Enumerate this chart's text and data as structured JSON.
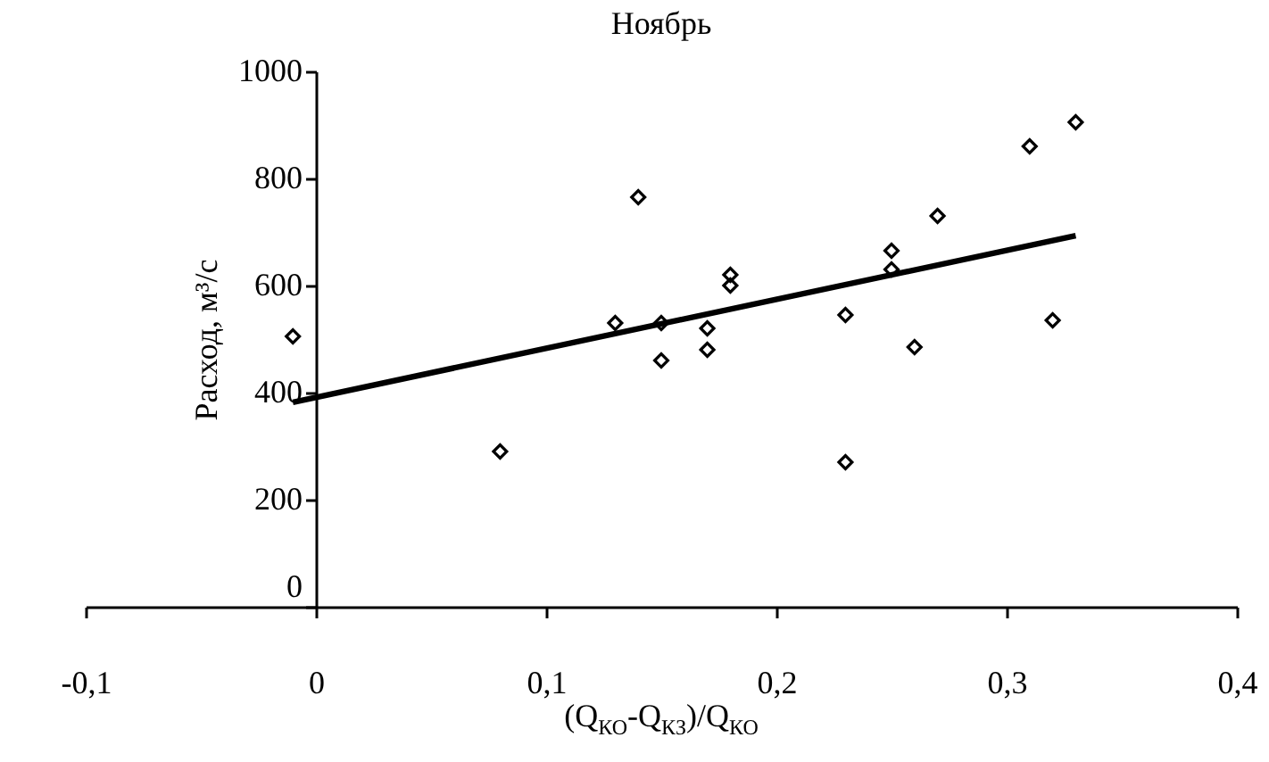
{
  "chart_data": {
    "type": "scatter",
    "title": "Ноябрь",
    "xlabel": "(Q$_{КО}$-Q$_{КЗ}$)/Q$_{КО}$",
    "ylabel": "Расход, м³/с",
    "xlim": [
      -0.1,
      0.4
    ],
    "xticks": [
      {
        "value": -0.1,
        "label": "-0,1"
      },
      0,
      {
        "value": 0.1,
        "label": "0,1"
      },
      {
        "value": 0.2,
        "label": "0,2"
      },
      {
        "value": 0.3,
        "label": "0,3"
      },
      {
        "value": 0.4,
        "label": "0,4"
      }
    ],
    "ylim": [
      0,
      1000
    ],
    "yticks": [
      0,
      200,
      400,
      600,
      800,
      1000
    ],
    "series": [
      {
        "type": "scatter",
        "marker": "diamond",
        "color": "#000000",
        "x": [
          -0.01,
          0.08,
          0.13,
          0.14,
          0.15,
          0.15,
          0.17,
          0.17,
          0.18,
          0.18,
          0.23,
          0.23,
          0.25,
          0.25,
          0.26,
          0.27,
          0.31,
          0.32,
          0.33
        ],
        "values": [
          505,
          290,
          530,
          765,
          530,
          460,
          520,
          480,
          620,
          600,
          545,
          270,
          665,
          630,
          485,
          730,
          860,
          535,
          905
        ]
      },
      {
        "type": "line",
        "color": "#000000",
        "x": [
          -0.01,
          0.33
        ],
        "values": [
          382,
          693
        ]
      }
    ]
  }
}
